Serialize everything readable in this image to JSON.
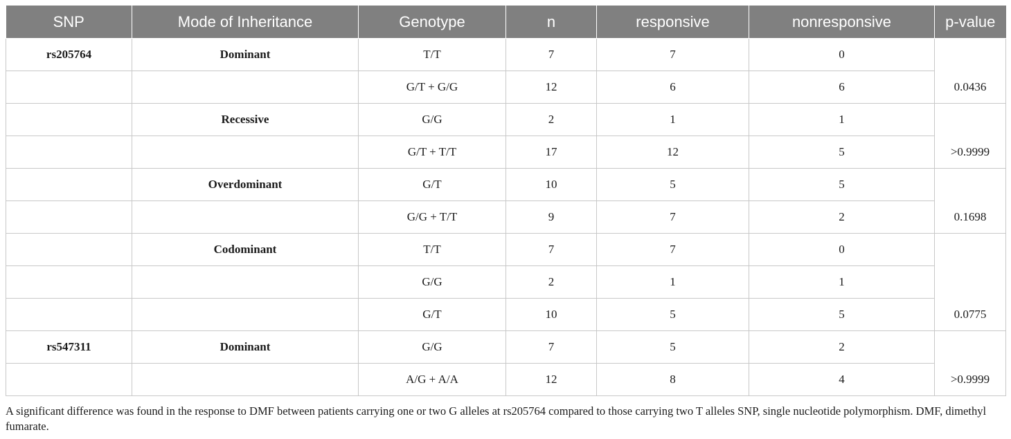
{
  "columns": [
    "SNP",
    "Mode of Inheritance",
    "Genotype",
    "n",
    "responsive",
    "nonresponsive",
    "p-value"
  ],
  "rows": [
    {
      "snp": "rs205764",
      "mode": "Dominant",
      "genotype": "T/T",
      "n": "7",
      "responsive": "7",
      "nonresponsive": "0"
    },
    {
      "snp": "",
      "mode": "",
      "genotype": "G/T + G/G",
      "n": "12",
      "responsive": "6",
      "nonresponsive": "6"
    },
    {
      "snp": "",
      "mode": "Recessive",
      "genotype": "G/G",
      "n": "2",
      "responsive": "1",
      "nonresponsive": "1"
    },
    {
      "snp": "",
      "mode": "",
      "genotype": "G/T + T/T",
      "n": "17",
      "responsive": "12",
      "nonresponsive": "5"
    },
    {
      "snp": "",
      "mode": "Overdominant",
      "genotype": "G/T",
      "n": "10",
      "responsive": "5",
      "nonresponsive": "5"
    },
    {
      "snp": "",
      "mode": "",
      "genotype": "G/G + T/T",
      "n": "9",
      "responsive": "7",
      "nonresponsive": "2"
    },
    {
      "snp": "",
      "mode": "Codominant",
      "genotype": "T/T",
      "n": "7",
      "responsive": "7",
      "nonresponsive": "0"
    },
    {
      "snp": "",
      "mode": "",
      "genotype": "G/G",
      "n": "2",
      "responsive": "1",
      "nonresponsive": "1"
    },
    {
      "snp": "",
      "mode": "",
      "genotype": "G/T",
      "n": "10",
      "responsive": "5",
      "nonresponsive": "5"
    },
    {
      "snp": "rs547311",
      "mode": "Dominant",
      "genotype": "G/G",
      "n": "7",
      "responsive": "5",
      "nonresponsive": "2"
    },
    {
      "snp": "",
      "mode": "",
      "genotype": "A/G + A/A",
      "n": "12",
      "responsive": "8",
      "nonresponsive": "4"
    }
  ],
  "p_values": [
    {
      "rowspan": 2,
      "value": "0.0436"
    },
    {
      "rowspan": 2,
      "value": ">0.9999"
    },
    {
      "rowspan": 2,
      "value": "0.1698"
    },
    {
      "rowspan": 3,
      "value": "0.0775"
    },
    {
      "rowspan": 2,
      "value": ">0.9999"
    }
  ],
  "footnote": "A significant difference was found in the response to DMF between patients carrying one or two G alleles at rs205764 compared to those carrying two T alleles SNP, single nucleotide polymorphism. DMF, dimethyl fumarate."
}
